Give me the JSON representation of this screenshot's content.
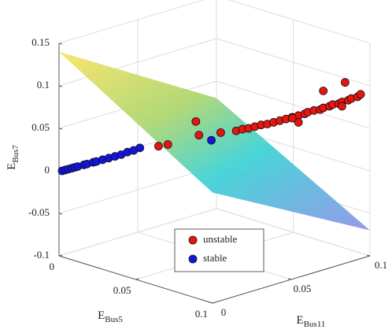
{
  "chart_data": {
    "type": "scatter3d",
    "xlabel": {
      "base": "E",
      "sub": "Bus5"
    },
    "ylabel": {
      "base": "E",
      "sub": "Bus11"
    },
    "zlabel": {
      "base": "E",
      "sub": "Bus7"
    },
    "xlim": [
      0,
      0.1
    ],
    "ylim": [
      0,
      0.1
    ],
    "zlim": [
      -0.1,
      0.15
    ],
    "xticks": [
      0,
      0.05,
      0.1
    ],
    "yticks": [
      0,
      0.05,
      0.1
    ],
    "zticks": [
      -0.1,
      -0.05,
      0,
      0.05,
      0.1,
      0.15
    ],
    "grid": true,
    "legend": "bottom",
    "surface": {
      "x": [
        0,
        0.1
      ],
      "y": [
        0,
        0.1
      ],
      "z": [
        [
          0.14,
          0.03
        ],
        [
          0.03,
          -0.07
        ]
      ]
    },
    "series": [
      {
        "name": "unstable",
        "color": "#e8140f",
        "x": [
          0.032,
          0.035,
          0.044,
          0.045,
          0.052,
          0.057,
          0.059,
          0.061,
          0.063,
          0.065,
          0.067,
          0.069,
          0.071,
          0.073,
          0.075,
          0.077,
          0.079,
          0.08,
          0.082,
          0.084,
          0.085,
          0.087,
          0.088,
          0.09,
          0.091,
          0.093,
          0.094,
          0.096,
          0.097,
          0.077,
          0.091,
          0.092,
          0.085,
          0.075
        ],
        "y": [
          0.032,
          0.035,
          0.044,
          0.045,
          0.052,
          0.057,
          0.059,
          0.061,
          0.063,
          0.065,
          0.067,
          0.069,
          0.071,
          0.073,
          0.075,
          0.077,
          0.079,
          0.08,
          0.082,
          0.084,
          0.085,
          0.087,
          0.088,
          0.09,
          0.091,
          0.093,
          0.094,
          0.096,
          0.097,
          0.077,
          0.091,
          0.092,
          0.085,
          0.075
        ],
        "z": [
          0.029,
          0.031,
          0.058,
          0.042,
          0.045,
          0.047,
          0.049,
          0.05,
          0.052,
          0.054,
          0.055,
          0.057,
          0.059,
          0.061,
          0.063,
          0.065,
          0.067,
          0.069,
          0.071,
          0.072,
          0.074,
          0.076,
          0.078,
          0.079,
          0.081,
          0.083,
          0.085,
          0.087,
          0.09,
          0.057,
          0.076,
          0.104,
          0.094,
          0.062
        ]
      },
      {
        "name": "stable",
        "color": "#1414e0",
        "x": [
          0.001,
          0.002,
          0.003,
          0.004,
          0.005,
          0.006,
          0.008,
          0.009,
          0.011,
          0.012,
          0.014,
          0.016,
          0.018,
          0.02,
          0.022,
          0.024,
          0.026,
          0.049
        ],
        "y": [
          0.001,
          0.002,
          0.003,
          0.004,
          0.005,
          0.006,
          0.008,
          0.009,
          0.011,
          0.012,
          0.014,
          0.016,
          0.018,
          0.02,
          0.022,
          0.024,
          0.026,
          0.049
        ],
        "z": [
          0,
          0.001,
          0.002,
          0.003,
          0.004,
          0.005,
          0.007,
          0.008,
          0.01,
          0.011,
          0.013,
          0.015,
          0.017,
          0.019,
          0.022,
          0.024,
          0.027,
          0.036
        ]
      }
    ]
  }
}
